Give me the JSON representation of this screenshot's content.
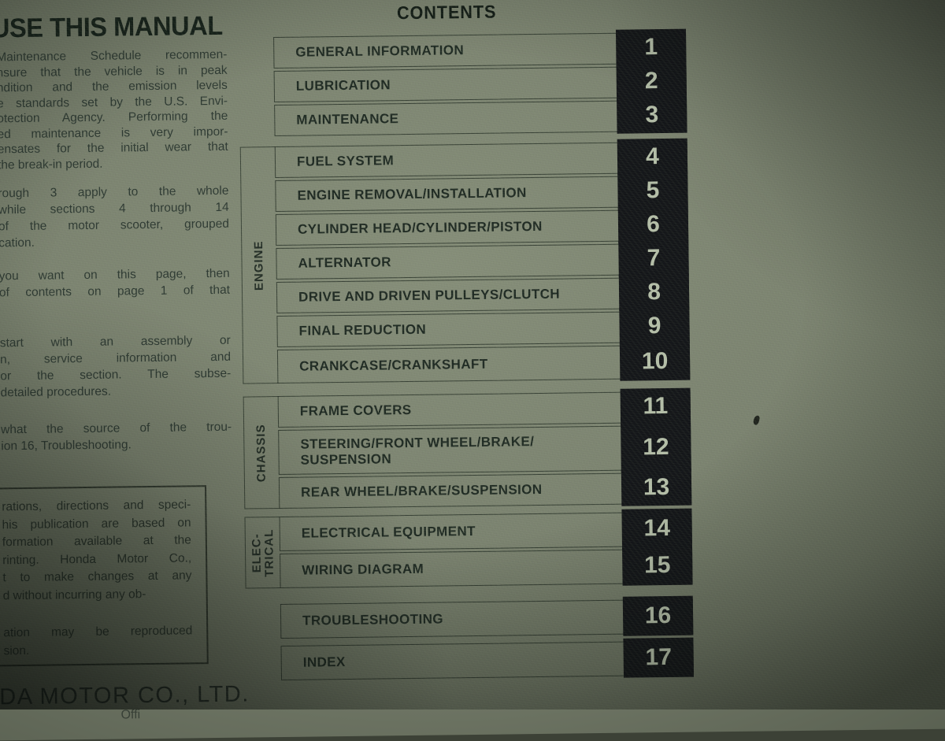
{
  "photo": {
    "description": "photo of a printed service-manual contents page",
    "colors": {
      "page": "#7c8471",
      "tab_bg": "#141619",
      "tab_text": "#b7c1ab",
      "ink": "#1f2a23"
    }
  },
  "left_column": {
    "heading": "USE THIS MANUAL",
    "paragraphs": [
      {
        "lines": [
          "Maintenance Schedule recommen-",
          "nsure that the vehicle is in peak",
          "ndition and the emission levels",
          "e standards set by the U.S. Envi-",
          "otection Agency. Performing the",
          "ed maintenance is very impor-",
          "ensates for the initial wear that",
          "the break-in period."
        ]
      },
      {
        "lines": [
          "rough 3 apply to the whole",
          "while sections 4 through 14",
          "of the motor scooter, grouped",
          "cation."
        ]
      },
      {
        "lines": [
          "you want on this page, then",
          "of contents on page 1 of that"
        ]
      },
      {
        "lines": [
          "start with an assembly or",
          "n, service information and",
          "or the section. The subse-",
          "detailed procedures."
        ]
      },
      {
        "lines": [
          "what the source of the trou-",
          "ion 16, Troubleshooting."
        ]
      }
    ],
    "note_box": {
      "lines": [
        "rations, directions and speci-",
        "his publication are based on",
        "formation available at the",
        "rinting. Honda Motor Co.,",
        "t to make changes at any",
        "d without incurring any ob-"
      ],
      "lines2": [
        "ation may be reproduced",
        "sion."
      ]
    },
    "footer_line1": "DA MOTOR CO., LTD.",
    "footer_line2": "Offi"
  },
  "contents": {
    "title": "CONTENTS",
    "group_labels": {
      "engine": "ENGINE",
      "chassis": "CHASSIS",
      "electrical": "ELEC-\nTRICAL"
    },
    "rows": [
      {
        "num": "1",
        "label": "GENERAL INFORMATION"
      },
      {
        "num": "2",
        "label": "LUBRICATION"
      },
      {
        "num": "3",
        "label": "MAINTENANCE"
      },
      {
        "num": "4",
        "label": "FUEL SYSTEM"
      },
      {
        "num": "5",
        "label": "ENGINE REMOVAL/INSTALLATION"
      },
      {
        "num": "6",
        "label": "CYLINDER HEAD/CYLINDER/PISTON"
      },
      {
        "num": "7",
        "label": "ALTERNATOR"
      },
      {
        "num": "8",
        "label": "DRIVE AND DRIVEN PULLEYS/CLUTCH"
      },
      {
        "num": "9",
        "label": "FINAL REDUCTION"
      },
      {
        "num": "10",
        "label": "CRANKCASE/CRANKSHAFT"
      },
      {
        "num": "11",
        "label": "FRAME COVERS"
      },
      {
        "num": "12",
        "label": "STEERING/FRONT WHEEL/BRAKE/",
        "label2": "SUSPENSION"
      },
      {
        "num": "13",
        "label": "REAR WHEEL/BRAKE/SUSPENSION"
      },
      {
        "num": "14",
        "label": "ELECTRICAL EQUIPMENT"
      },
      {
        "num": "15",
        "label": "WIRING DIAGRAM"
      },
      {
        "num": "16",
        "label": "TROUBLESHOOTING"
      },
      {
        "num": "17",
        "label": "INDEX"
      }
    ]
  }
}
